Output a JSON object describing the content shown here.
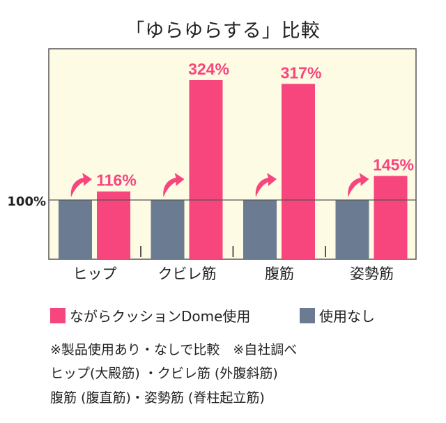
{
  "chart_data": {
    "type": "bar",
    "title": "「ゆらゆらする」比較",
    "categories": [
      "ヒップ",
      "クビレ筋",
      "腹筋",
      "姿勢筋"
    ],
    "series": [
      {
        "name": "使用なし",
        "values": [
          100,
          100,
          100,
          100
        ],
        "color": "#6b7b92"
      },
      {
        "name": "ながらクッションDome使用",
        "values": [
          116,
          324,
          317,
          145
        ],
        "color": "#f7457e"
      }
    ],
    "data_labels": [
      "116%",
      "324%",
      "317%",
      "145%"
    ],
    "y_tick_labels": [
      "100%"
    ],
    "reference_line": 100,
    "grid": false,
    "legend_placement": "bottom",
    "background": "#fdfbe3",
    "icons": "up-arrow-icon"
  },
  "notes": [
    "※製品使用あり・なしで比較　※自社調べ",
    "ヒップ(大殿筋) ・クビレ筋 (外腹斜筋)",
    "腹筋 (腹直筋)・姿勢筋 (脊柱起立筋)"
  ]
}
